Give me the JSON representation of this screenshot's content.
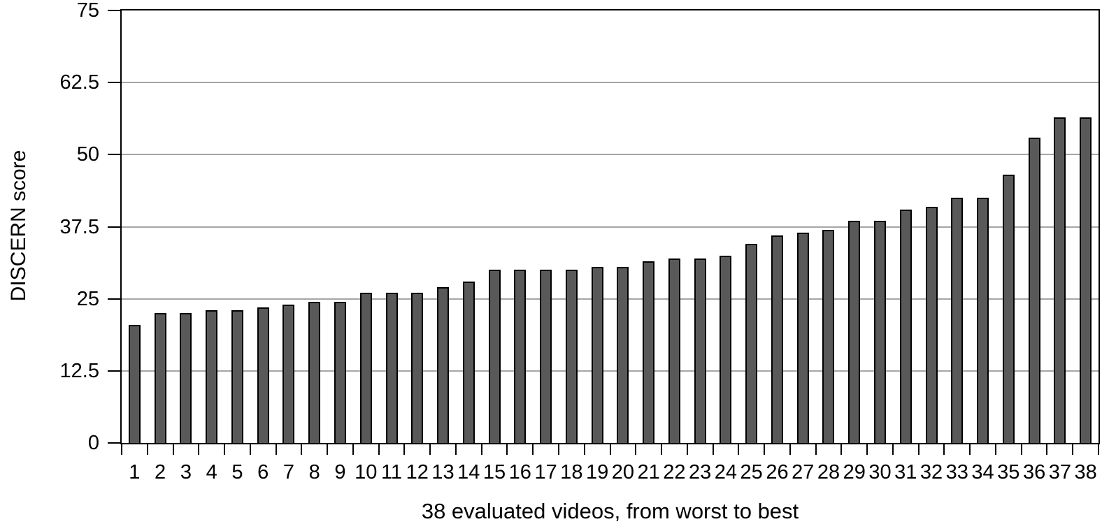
{
  "chart_data": {
    "type": "bar",
    "xlabel": "38 evaluated videos, from worst to best",
    "ylabel": "DISCERN score",
    "categories": [
      "1",
      "2",
      "3",
      "4",
      "5",
      "6",
      "7",
      "8",
      "9",
      "10",
      "11",
      "12",
      "13",
      "14",
      "15",
      "16",
      "17",
      "18",
      "19",
      "20",
      "21",
      "22",
      "23",
      "24",
      "25",
      "26",
      "27",
      "28",
      "29",
      "30",
      "31",
      "32",
      "33",
      "34",
      "35",
      "36",
      "37",
      "38"
    ],
    "values": [
      20.5,
      22.5,
      22.5,
      23,
      23,
      23.5,
      24,
      24.5,
      24.5,
      26,
      26,
      26,
      27,
      28,
      30,
      30,
      30,
      30,
      30.5,
      30.5,
      31.5,
      32,
      32,
      32.5,
      34.5,
      36,
      36.5,
      37,
      38.5,
      38.5,
      40.5,
      41,
      42.5,
      42.5,
      46.5,
      53,
      56.5,
      56.5
    ],
    "ylim": [
      0,
      75
    ],
    "yticks": [
      {
        "label": "0",
        "value": 0
      },
      {
        "label": "12.5",
        "value": 12.5
      },
      {
        "label": "25",
        "value": 25
      },
      {
        "label": "37.5",
        "value": 37.5
      },
      {
        "label": "50",
        "value": 50
      },
      {
        "label": "62.5",
        "value": 62.5
      },
      {
        "label": "75",
        "value": 75
      }
    ],
    "grid": true,
    "legend": "none",
    "colors": {
      "bar_fill": "#595959",
      "bar_border": "#000000",
      "gridline": "#a6a6a6",
      "axis": "#000000",
      "background": "#ffffff",
      "text": "#000000"
    }
  }
}
